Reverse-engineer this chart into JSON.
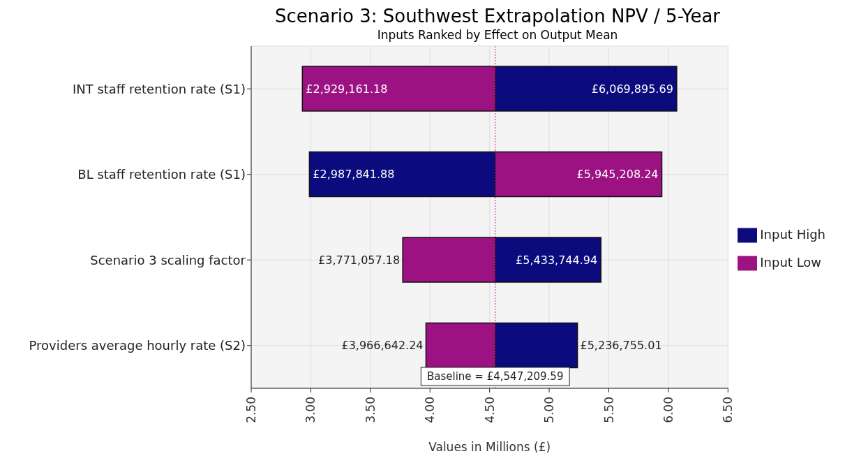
{
  "chart_data": {
    "type": "bar",
    "orientation": "horizontal",
    "title": "Scenario 3: Southwest Extrapolation NPV / 5-Year",
    "subtitle": "Inputs Ranked by Effect on Output Mean",
    "xlabel": "Values in Millions (£)",
    "categories": [
      "INT staff retention rate (S1)",
      "BL staff retention rate (S1)",
      "Scenario 3 scaling factor",
      "Providers average hourly rate (S2)"
    ],
    "series": [
      {
        "name": "Input High",
        "color": "#0b0b7e",
        "base": [
          4.54720959,
          4.54720959,
          4.54720959,
          4.54720959
        ],
        "values": [
          1.523,
          -1.559,
          0.887,
          0.69
        ]
      },
      {
        "name": "Input Low",
        "color": "#9c1283",
        "base": [
          4.54720959,
          4.54720959,
          4.54720959,
          4.54720959
        ],
        "values": [
          -1.618,
          1.398,
          -0.776,
          -0.581
        ]
      }
    ],
    "annotations": [
      {
        "text": "£2,929,161.18",
        "x": 2.92916118,
        "y": "INT staff retention rate (S1)"
      },
      {
        "text": "£6,069,895.69",
        "x": 6.06989569,
        "y": "INT staff retention rate (S1)"
      },
      {
        "text": "£2,987,841.88",
        "x": 2.98784188,
        "y": "BL staff retention rate (S1)"
      },
      {
        "text": "£5,945,208.24",
        "x": 5.94520824,
        "y": "BL staff retention rate (S1)"
      },
      {
        "text": "£3,771,057.18",
        "x": 3.77105718,
        "y": "Scenario 3 scaling factor"
      },
      {
        "text": "£5,433,744.94",
        "x": 5.43374494,
        "y": "Scenario 3 scaling factor"
      },
      {
        "text": "£3,966,642.24",
        "x": 3.96664224,
        "y": "Providers average hourly rate (S2)"
      },
      {
        "text": "£5,236,755.01",
        "x": 5.23675501,
        "y": "Providers average hourly rate (S2)"
      }
    ],
    "xlim": [
      2.5,
      6.5
    ],
    "xticks": [
      {
        "value": 2.5,
        "label": "2.50"
      },
      {
        "value": 3,
        "label": "3.00"
      },
      {
        "value": 3.5,
        "label": "3.50"
      },
      {
        "value": 4,
        "label": "4.00"
      },
      {
        "value": 4.5,
        "label": "4.50"
      },
      {
        "value": 5,
        "label": "5.00"
      },
      {
        "value": 5.5,
        "label": "5.50"
      },
      {
        "value": 6,
        "label": "6.00"
      },
      {
        "value": 6.5,
        "label": "6.50"
      }
    ],
    "ref_lines": [
      {
        "axis": "x",
        "value": 4.54720959,
        "label": "Baseline = £4,547,209.59",
        "color": "#c0209a",
        "line_style": "dotted"
      }
    ],
    "grid": true,
    "legend": "right"
  }
}
